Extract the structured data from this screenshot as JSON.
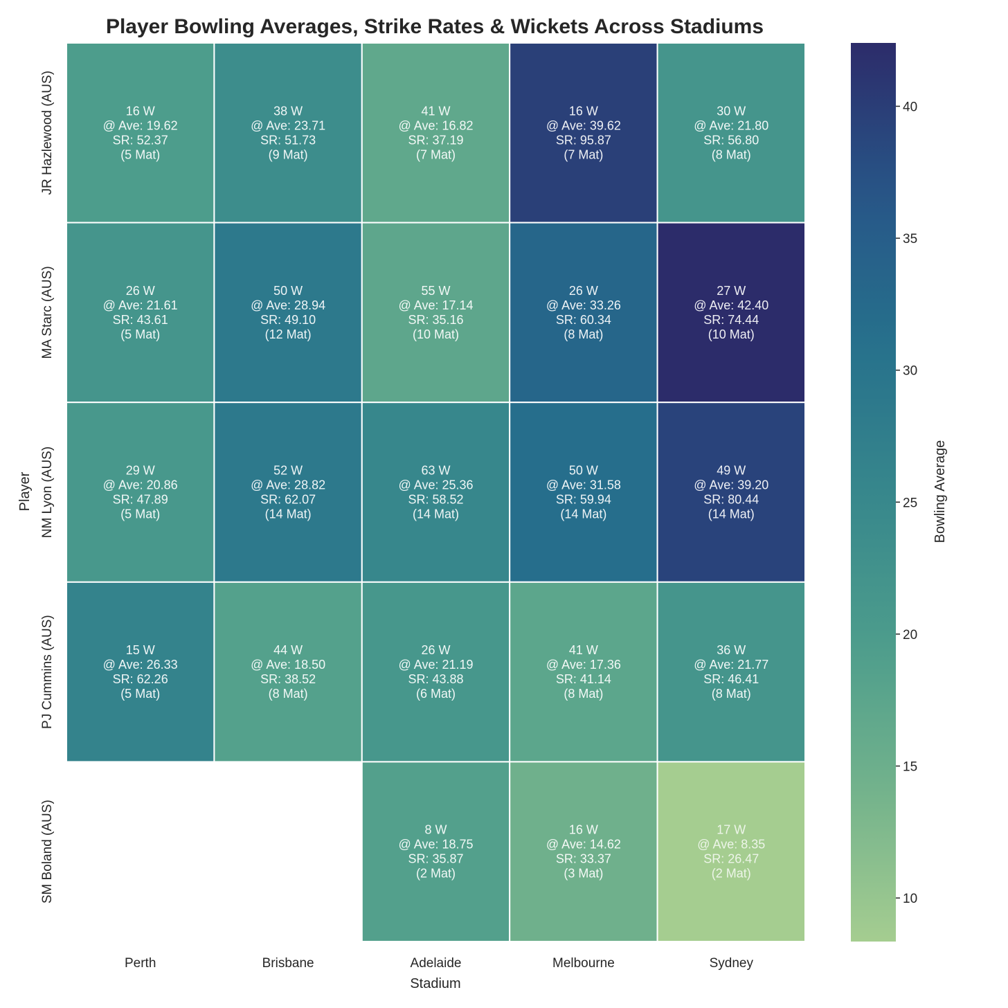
{
  "chart_data": {
    "type": "heatmap",
    "title": "Player Bowling Averages, Strike Rates & Wickets Across Stadiums",
    "xlabel": "Stadium",
    "ylabel": "Player",
    "colorbar_label": "Bowling Average",
    "x_categories": [
      "Perth",
      "Brisbane",
      "Adelaide",
      "Melbourne",
      "Sydney"
    ],
    "y_categories": [
      "JR Hazlewood (AUS)",
      "MA Starc (AUS)",
      "NM Lyon (AUS)",
      "PJ Cummins (AUS)",
      "SM Boland (AUS)"
    ],
    "colorscale": "crest",
    "colorbar_range": [
      8.35,
      42.4
    ],
    "colorbar_ticks": [
      10,
      15,
      20,
      25,
      30,
      35,
      40
    ],
    "cells": [
      [
        {
          "wickets": 16,
          "average": 19.62,
          "strike_rate": 52.37,
          "matches": 5
        },
        {
          "wickets": 38,
          "average": 23.71,
          "strike_rate": 51.73,
          "matches": 9
        },
        {
          "wickets": 41,
          "average": 16.82,
          "strike_rate": 37.19,
          "matches": 7
        },
        {
          "wickets": 16,
          "average": 39.62,
          "strike_rate": 95.87,
          "matches": 7
        },
        {
          "wickets": 30,
          "average": 21.8,
          "strike_rate": 56.8,
          "matches": 8
        }
      ],
      [
        {
          "wickets": 26,
          "average": 21.61,
          "strike_rate": 43.61,
          "matches": 5
        },
        {
          "wickets": 50,
          "average": 28.94,
          "strike_rate": 49.1,
          "matches": 12
        },
        {
          "wickets": 55,
          "average": 17.14,
          "strike_rate": 35.16,
          "matches": 10
        },
        {
          "wickets": 26,
          "average": 33.26,
          "strike_rate": 60.34,
          "matches": 8
        },
        {
          "wickets": 27,
          "average": 42.4,
          "strike_rate": 74.44,
          "matches": 10
        }
      ],
      [
        {
          "wickets": 29,
          "average": 20.86,
          "strike_rate": 47.89,
          "matches": 5
        },
        {
          "wickets": 52,
          "average": 28.82,
          "strike_rate": 62.07,
          "matches": 14
        },
        {
          "wickets": 63,
          "average": 25.36,
          "strike_rate": 58.52,
          "matches": 14
        },
        {
          "wickets": 50,
          "average": 31.58,
          "strike_rate": 59.94,
          "matches": 14
        },
        {
          "wickets": 49,
          "average": 39.2,
          "strike_rate": 80.44,
          "matches": 14
        }
      ],
      [
        {
          "wickets": 15,
          "average": 26.33,
          "strike_rate": 62.26,
          "matches": 5
        },
        {
          "wickets": 44,
          "average": 18.5,
          "strike_rate": 38.52,
          "matches": 8
        },
        {
          "wickets": 26,
          "average": 21.19,
          "strike_rate": 43.88,
          "matches": 6
        },
        {
          "wickets": 41,
          "average": 17.36,
          "strike_rate": 41.14,
          "matches": 8
        },
        {
          "wickets": 36,
          "average": 21.77,
          "strike_rate": 46.41,
          "matches": 8
        }
      ],
      [
        null,
        null,
        {
          "wickets": 8,
          "average": 18.75,
          "strike_rate": 35.87,
          "matches": 2
        },
        {
          "wickets": 16,
          "average": 14.62,
          "strike_rate": 33.37,
          "matches": 3
        },
        {
          "wickets": 17,
          "average": 8.35,
          "strike_rate": 26.47,
          "matches": 2
        }
      ]
    ],
    "annotation_format": {
      "wickets_suffix": " W",
      "average_prefix": "@ Ave: ",
      "strike_rate_prefix": "SR: ",
      "matches_prefix": "(",
      "matches_suffix": " Mat)"
    }
  }
}
